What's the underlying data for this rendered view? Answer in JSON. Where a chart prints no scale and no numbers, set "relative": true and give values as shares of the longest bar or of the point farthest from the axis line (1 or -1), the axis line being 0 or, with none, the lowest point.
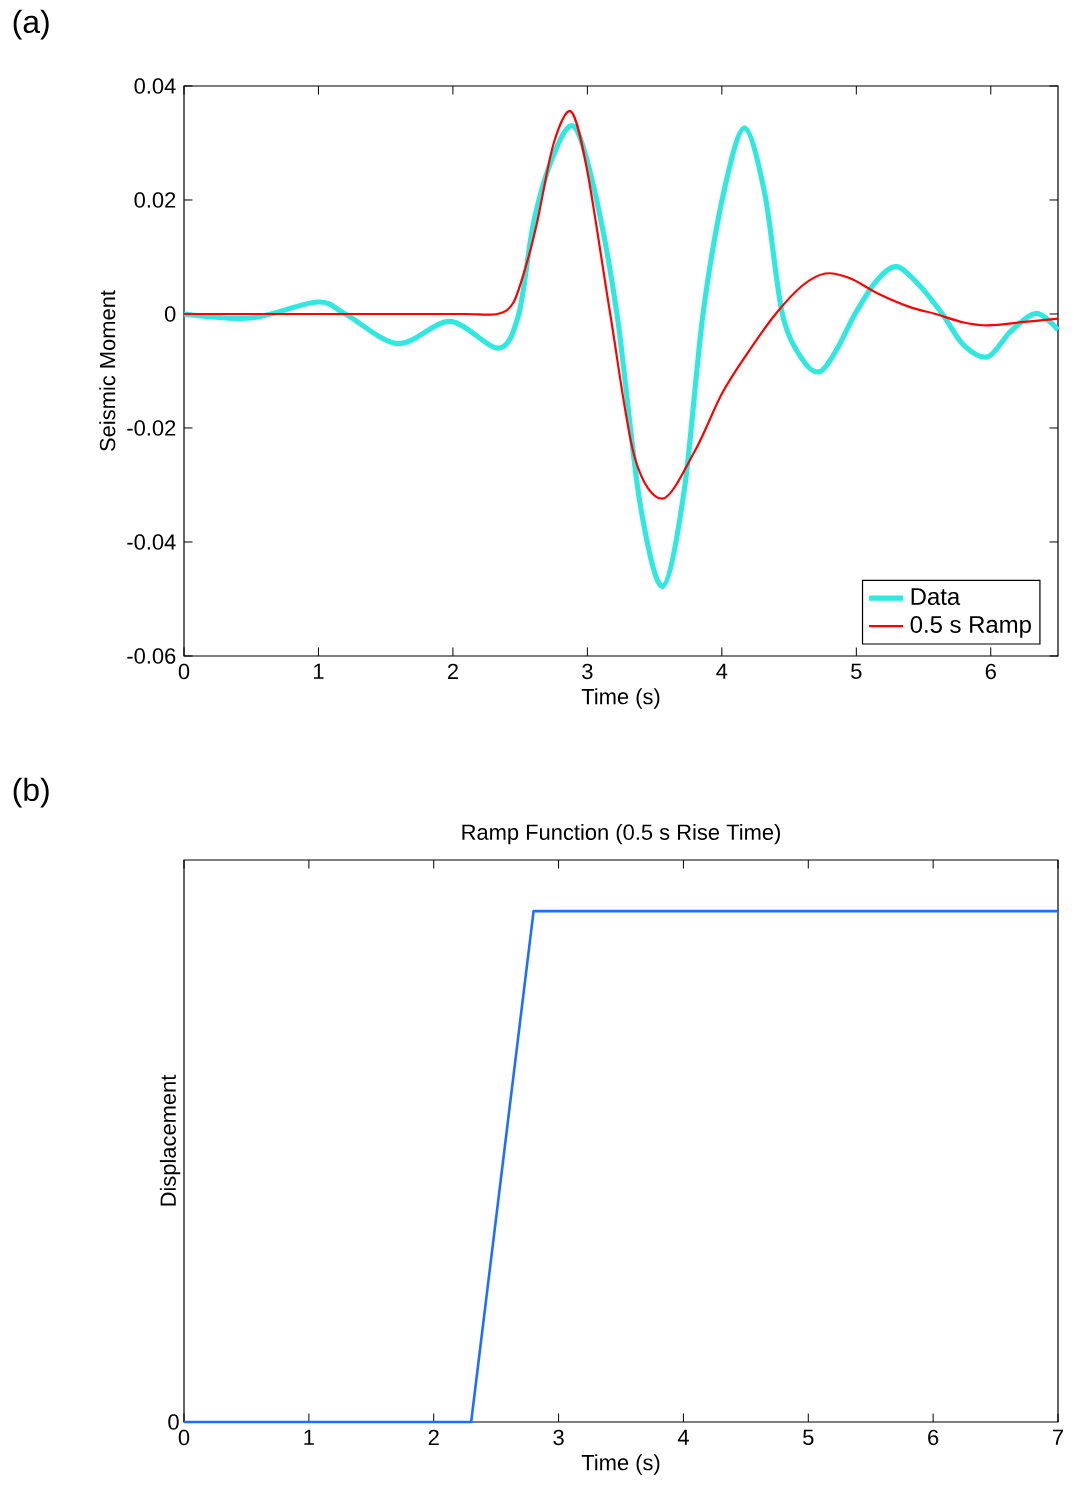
{
  "chart_data": [
    {
      "type": "line",
      "xlabel": "Time (s)",
      "ylabel": "Seismic Moment",
      "annotations": [
        "(a)"
      ],
      "xlim": [
        0,
        6.5
      ],
      "xticks": [
        0,
        1,
        2,
        3,
        4,
        5,
        6
      ],
      "ylim": [
        -0.06,
        0.04
      ],
      "yticks": [
        -0.06,
        -0.04,
        -0.02,
        0,
        0.02,
        0.04
      ],
      "grid": false,
      "legend": "bottom right",
      "series": [
        {
          "name": "Data",
          "color": "#30e8e0",
          "x": [
            0,
            0.5,
            0.99,
            1.2,
            1.59,
            1.98,
            2.34,
            2.49,
            2.6,
            2.75,
            2.9,
            3.05,
            3.22,
            3.39,
            3.56,
            3.72,
            3.86,
            4.02,
            4.17,
            4.32,
            4.45,
            4.6,
            4.73,
            4.86,
            4.99,
            5.15,
            5.3,
            5.47,
            5.64,
            5.8,
            5.98,
            6.15,
            6.34,
            6.5
          ],
          "values": [
            0,
            -0.0007,
            0.0021,
            0,
            -0.0052,
            -0.0013,
            -0.006,
            0,
            0.016,
            0.028,
            0.0329,
            0.022,
            0,
            -0.033,
            -0.0478,
            -0.031,
            0,
            0.022,
            0.0326,
            0.021,
            0,
            -0.008,
            -0.0101,
            -0.006,
            0,
            0.0058,
            0.0083,
            0.005,
            0,
            -0.0055,
            -0.0075,
            -0.003,
            0.0001,
            -0.0028
          ]
        },
        {
          "name": "0.5 s Ramp",
          "color": "#ff0000",
          "x": [
            0,
            0.6,
            1.2,
            1.8,
            2.1,
            2.33,
            2.45,
            2.55,
            2.63,
            2.75,
            2.88,
            3.0,
            3.17,
            3.35,
            3.56,
            3.8,
            4.0,
            4.19,
            4.4,
            4.6,
            4.77,
            4.95,
            5.16,
            5.4,
            5.59,
            5.8,
            5.98,
            6.25,
            6.5
          ],
          "values": [
            0,
            0,
            0,
            0,
            0,
            0,
            0.002,
            0.009,
            0.0165,
            0.03,
            0.0355,
            0.025,
            0,
            -0.025,
            -0.0324,
            -0.024,
            -0.014,
            -0.0069,
            0,
            0.005,
            0.0071,
            0.0063,
            0.0036,
            0.0012,
            0,
            -0.0015,
            -0.002,
            -0.0014,
            -0.0008
          ]
        }
      ]
    },
    {
      "type": "line",
      "title": "Ramp Function (0.5 s Rise Time)",
      "xlabel": "Time (s)",
      "ylabel": "Displacement",
      "annotations": [
        "(b)",
        {
          "text": "0",
          "x": 0,
          "y": 0
        }
      ],
      "relative": true,
      "xlim": [
        0,
        7
      ],
      "xticks": [
        0,
        1,
        2,
        3,
        4,
        5,
        6,
        7
      ],
      "grid": false,
      "legend": false,
      "series": [
        {
          "color": "#1f6fff",
          "x": [
            0,
            2.3,
            2.8,
            7
          ],
          "values": [
            0,
            0,
            1,
            1
          ]
        }
      ]
    }
  ]
}
